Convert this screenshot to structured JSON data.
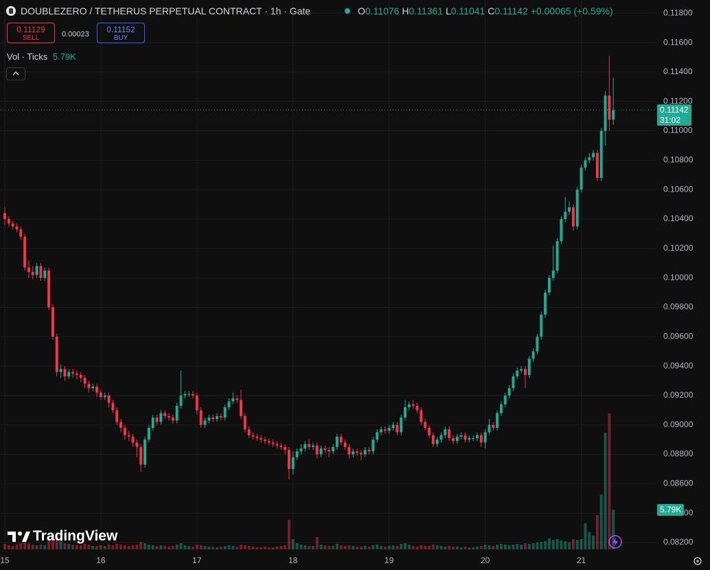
{
  "header": {
    "symbol_title": "DOUBLEZERO / TETHERUS PERPETUAL CONTRACT · 1h · Gate",
    "ohlc_labels": [
      "O",
      "H",
      "L",
      "C"
    ],
    "change": "+0.00065 (+0.59%)",
    "countdown": "31:02"
  },
  "trade": {
    "sell_price": 0.11129,
    "sell_label": "SELL",
    "spread": 0.00023,
    "buy_price": 0.11152,
    "buy_label": "BUY"
  },
  "indicator": {
    "name": "Vol · Ticks"
  },
  "branding": {
    "logo_text": "TradingView"
  },
  "chart_data": {
    "type": "candlestick",
    "up_color": "#22ab94",
    "down_color": "#f23645",
    "grid": true,
    "xlim": [
      -1.2,
      162.6
    ],
    "xticks": [
      {
        "value": 0,
        "label": "15"
      },
      {
        "value": 24,
        "label": "16"
      },
      {
        "value": 48,
        "label": "17"
      },
      {
        "value": 72,
        "label": "18"
      },
      {
        "value": 96,
        "label": "19"
      },
      {
        "value": 120,
        "label": "20"
      },
      {
        "value": 144,
        "label": "21"
      }
    ],
    "ylim": [
      0.0813,
      0.1189
    ],
    "yticks": [
      {
        "value": 0.118,
        "label": "0.11800"
      },
      {
        "value": 0.116,
        "label": "0.11600"
      },
      {
        "value": 0.114,
        "label": "0.11400"
      },
      {
        "value": 0.112,
        "label": "0.11200"
      },
      {
        "value": 0.11,
        "label": "0.11000"
      },
      {
        "value": 0.108,
        "label": "0.10800"
      },
      {
        "value": 0.106,
        "label": "0.10600"
      },
      {
        "value": 0.104,
        "label": "0.10400"
      },
      {
        "value": 0.102,
        "label": "0.10200"
      },
      {
        "value": 0.1,
        "label": "0.10000"
      },
      {
        "value": 0.098,
        "label": "0.09800"
      },
      {
        "value": 0.096,
        "label": "0.09600"
      },
      {
        "value": 0.094,
        "label": "0.09400"
      },
      {
        "value": 0.092,
        "label": "0.09200"
      },
      {
        "value": 0.09,
        "label": "0.09000"
      },
      {
        "value": 0.088,
        "label": "0.08800"
      },
      {
        "value": 0.086,
        "label": "0.08600"
      },
      {
        "value": 0.084,
        "label": "0.08400"
      },
      {
        "value": 0.082,
        "label": "0.08200"
      }
    ],
    "x": [
      0,
      1,
      2,
      3,
      4,
      5,
      6,
      7,
      8,
      9,
      10,
      11,
      12,
      13,
      14,
      15,
      16,
      17,
      18,
      19,
      20,
      21,
      22,
      23,
      24,
      25,
      26,
      27,
      28,
      29,
      30,
      31,
      32,
      33,
      34,
      35,
      36,
      37,
      38,
      39,
      40,
      41,
      42,
      43,
      44,
      45,
      46,
      47,
      48,
      49,
      50,
      51,
      52,
      53,
      54,
      55,
      56,
      57,
      58,
      59,
      60,
      61,
      62,
      63,
      64,
      65,
      66,
      67,
      68,
      69,
      70,
      71,
      72,
      73,
      74,
      75,
      76,
      77,
      78,
      79,
      80,
      81,
      82,
      83,
      84,
      85,
      86,
      87,
      88,
      89,
      90,
      91,
      92,
      93,
      94,
      95,
      96,
      97,
      98,
      99,
      100,
      101,
      102,
      103,
      104,
      105,
      106,
      107,
      108,
      109,
      110,
      111,
      112,
      113,
      114,
      115,
      116,
      117,
      118,
      119,
      120,
      121,
      122,
      123,
      124,
      125,
      126,
      127,
      128,
      129,
      130,
      131,
      132,
      133,
      134,
      135,
      136,
      137,
      138,
      139,
      140,
      141,
      142,
      143,
      144,
      145,
      146,
      147,
      148,
      149,
      150,
      151,
      152
    ],
    "open": [
      0.1044,
      0.104,
      0.1037,
      0.1035,
      0.1033,
      0.1028,
      0.1007,
      0.1004,
      0.1002,
      0.1008,
      0.1,
      0.1005,
      0.098,
      0.096,
      0.0936,
      0.0938,
      0.0933,
      0.0936,
      0.0935,
      0.0934,
      0.0932,
      0.0928,
      0.0925,
      0.0926,
      0.0922,
      0.0919,
      0.092,
      0.0915,
      0.091,
      0.0902,
      0.0898,
      0.0893,
      0.0892,
      0.0888,
      0.0885,
      0.0873,
      0.089,
      0.0898,
      0.0905,
      0.0902,
      0.0908,
      0.0906,
      0.0905,
      0.0903,
      0.0913,
      0.092,
      0.0921,
      0.0921,
      0.092,
      0.091,
      0.09,
      0.0903,
      0.0905,
      0.0904,
      0.0906,
      0.0905,
      0.0912,
      0.0916,
      0.0918,
      0.0917,
      0.0906,
      0.0897,
      0.0893,
      0.0892,
      0.0891,
      0.089,
      0.0889,
      0.0888,
      0.0887,
      0.0886,
      0.0885,
      0.0883,
      0.087,
      0.0878,
      0.0882,
      0.0884,
      0.0887,
      0.0885,
      0.0886,
      0.088,
      0.0884,
      0.0883,
      0.0882,
      0.0885,
      0.0892,
      0.0888,
      0.0885,
      0.088,
      0.0882,
      0.0881,
      0.088,
      0.0883,
      0.0882,
      0.089,
      0.0895,
      0.0897,
      0.0896,
      0.0898,
      0.09,
      0.0895,
      0.0905,
      0.0912,
      0.0914,
      0.0913,
      0.091,
      0.0902,
      0.0898,
      0.0893,
      0.0887,
      0.089,
      0.0893,
      0.0897,
      0.0891,
      0.0889,
      0.0892,
      0.0893,
      0.089,
      0.0891,
      0.0891,
      0.0893,
      0.0888,
      0.0895,
      0.09,
      0.0898,
      0.0908,
      0.0914,
      0.092,
      0.0925,
      0.0933,
      0.0937,
      0.0938,
      0.0934,
      0.0945,
      0.095,
      0.096,
      0.0975,
      0.099,
      0.1,
      0.1005,
      0.1025,
      0.104,
      0.1045,
      0.1048,
      0.1035,
      0.106,
      0.1075,
      0.108,
      0.1082,
      0.1085,
      0.1068,
      0.11,
      0.1124,
      0.11076
    ],
    "high": [
      0.1048,
      0.1042,
      0.1039,
      0.1037,
      0.1035,
      0.103,
      0.1012,
      0.1008,
      0.101,
      0.101,
      0.1007,
      0.1007,
      0.0982,
      0.0962,
      0.0941,
      0.094,
      0.0938,
      0.0938,
      0.0937,
      0.0936,
      0.0934,
      0.093,
      0.0928,
      0.0928,
      0.0924,
      0.0922,
      0.0922,
      0.0917,
      0.0912,
      0.0904,
      0.09,
      0.0896,
      0.0894,
      0.089,
      0.0887,
      0.0892,
      0.09,
      0.0907,
      0.0907,
      0.091,
      0.091,
      0.0908,
      0.0907,
      0.0915,
      0.0937,
      0.0923,
      0.0923,
      0.0923,
      0.0922,
      0.0912,
      0.0905,
      0.0907,
      0.0907,
      0.0908,
      0.0908,
      0.0914,
      0.0918,
      0.0922,
      0.092,
      0.0924,
      0.0908,
      0.0899,
      0.0895,
      0.0894,
      0.0893,
      0.0892,
      0.0891,
      0.089,
      0.0889,
      0.0888,
      0.0887,
      0.0885,
      0.0882,
      0.0884,
      0.0887,
      0.0889,
      0.089,
      0.0888,
      0.0888,
      0.0886,
      0.0886,
      0.0885,
      0.0887,
      0.0894,
      0.0894,
      0.089,
      0.0887,
      0.0884,
      0.0884,
      0.0883,
      0.0885,
      0.0885,
      0.0892,
      0.0897,
      0.0899,
      0.0899,
      0.09,
      0.0902,
      0.0902,
      0.0907,
      0.0917,
      0.0916,
      0.0917,
      0.0915,
      0.0912,
      0.0904,
      0.09,
      0.0895,
      0.0892,
      0.0895,
      0.0899,
      0.0899,
      0.0893,
      0.0894,
      0.0895,
      0.0895,
      0.0893,
      0.0893,
      0.0895,
      0.0895,
      0.0897,
      0.0904,
      0.0902,
      0.091,
      0.0916,
      0.0922,
      0.0927,
      0.0935,
      0.0939,
      0.094,
      0.094,
      0.0947,
      0.0952,
      0.0962,
      0.0977,
      0.0992,
      0.1002,
      0.1022,
      0.1027,
      0.1042,
      0.1055,
      0.1052,
      0.105,
      0.1062,
      0.1077,
      0.1082,
      0.1085,
      0.1087,
      0.1087,
      0.1102,
      0.1127,
      0.1151,
      0.11361
    ],
    "low": [
      0.1036,
      0.1035,
      0.1033,
      0.1031,
      0.1026,
      0.1005,
      0.1,
      0.0999,
      0.1,
      0.0998,
      0.0998,
      0.0978,
      0.0958,
      0.0933,
      0.0932,
      0.093,
      0.0931,
      0.0932,
      0.0931,
      0.0929,
      0.0925,
      0.0922,
      0.0923,
      0.0919,
      0.0917,
      0.0917,
      0.0912,
      0.0908,
      0.09,
      0.0895,
      0.089,
      0.0889,
      0.0885,
      0.0878,
      0.0868,
      0.0871,
      0.0888,
      0.0896,
      0.09,
      0.09,
      0.0904,
      0.0903,
      0.0901,
      0.0901,
      0.0911,
      0.0918,
      0.0919,
      0.0918,
      0.0907,
      0.0898,
      0.0898,
      0.0901,
      0.0902,
      0.0902,
      0.0903,
      0.0903,
      0.091,
      0.0914,
      0.0915,
      0.0904,
      0.0895,
      0.0891,
      0.089,
      0.0889,
      0.0888,
      0.0887,
      0.0886,
      0.0885,
      0.0884,
      0.0883,
      0.088,
      0.0863,
      0.0866,
      0.0876,
      0.088,
      0.0882,
      0.0883,
      0.0883,
      0.0877,
      0.0878,
      0.0881,
      0.0878,
      0.088,
      0.0883,
      0.0886,
      0.0883,
      0.0877,
      0.0878,
      0.0879,
      0.0876,
      0.0878,
      0.088,
      0.088,
      0.0888,
      0.0893,
      0.0894,
      0.0894,
      0.0896,
      0.0893,
      0.0893,
      0.0903,
      0.091,
      0.0911,
      0.0908,
      0.09,
      0.0896,
      0.0891,
      0.0885,
      0.0885,
      0.0888,
      0.0891,
      0.0889,
      0.0887,
      0.0887,
      0.089,
      0.0888,
      0.0888,
      0.0889,
      0.0889,
      0.0885,
      0.0884,
      0.0893,
      0.0896,
      0.0896,
      0.0906,
      0.0912,
      0.0918,
      0.0923,
      0.0931,
      0.0935,
      0.0925,
      0.0932,
      0.0943,
      0.0948,
      0.0958,
      0.0973,
      0.0988,
      0.0998,
      0.1003,
      0.1023,
      0.1038,
      0.1043,
      0.1032,
      0.1033,
      0.1058,
      0.1073,
      0.1078,
      0.108,
      0.1066,
      0.1066,
      0.109,
      0.11,
      0.11041
    ],
    "close": [
      0.104,
      0.1037,
      0.1035,
      0.1033,
      0.1028,
      0.1007,
      0.1004,
      0.1002,
      0.1008,
      0.1,
      0.1005,
      0.098,
      0.096,
      0.0936,
      0.0938,
      0.0933,
      0.0936,
      0.0935,
      0.0934,
      0.0932,
      0.0928,
      0.0925,
      0.0926,
      0.0922,
      0.0919,
      0.092,
      0.0915,
      0.091,
      0.0902,
      0.0898,
      0.0893,
      0.0892,
      0.0888,
      0.0885,
      0.0873,
      0.089,
      0.0898,
      0.0905,
      0.0902,
      0.0908,
      0.0906,
      0.0905,
      0.0903,
      0.0913,
      0.092,
      0.0921,
      0.0921,
      0.092,
      0.091,
      0.09,
      0.0903,
      0.0905,
      0.0904,
      0.0906,
      0.0905,
      0.0912,
      0.0916,
      0.0918,
      0.0917,
      0.0906,
      0.0897,
      0.0893,
      0.0892,
      0.0891,
      0.089,
      0.0889,
      0.0888,
      0.0887,
      0.0886,
      0.0885,
      0.0883,
      0.087,
      0.0878,
      0.0882,
      0.0884,
      0.0887,
      0.0885,
      0.0886,
      0.088,
      0.0884,
      0.0883,
      0.0882,
      0.0885,
      0.0892,
      0.0888,
      0.0885,
      0.088,
      0.0882,
      0.0881,
      0.088,
      0.0883,
      0.0882,
      0.089,
      0.0895,
      0.0897,
      0.0896,
      0.0898,
      0.09,
      0.0895,
      0.0905,
      0.0912,
      0.0914,
      0.0913,
      0.091,
      0.0902,
      0.0898,
      0.0893,
      0.0887,
      0.089,
      0.0893,
      0.0897,
      0.0891,
      0.0889,
      0.0892,
      0.0893,
      0.089,
      0.0891,
      0.0891,
      0.0893,
      0.0888,
      0.0895,
      0.09,
      0.0898,
      0.0908,
      0.0914,
      0.092,
      0.0925,
      0.0933,
      0.0937,
      0.0938,
      0.0934,
      0.0945,
      0.095,
      0.096,
      0.0975,
      0.099,
      0.1,
      0.1005,
      0.1025,
      0.104,
      0.1045,
      0.1048,
      0.1035,
      0.106,
      0.1075,
      0.108,
      0.1082,
      0.1085,
      0.1068,
      0.11,
      0.1124,
      0.11076,
      0.11142
    ],
    "volume": [
      800,
      600,
      500,
      700,
      900,
      1200,
      900,
      700,
      600,
      700,
      600,
      1500,
      2200,
      2000,
      1400,
      900,
      800,
      700,
      600,
      600,
      800,
      700,
      500,
      500,
      600,
      500,
      700,
      600,
      800,
      700,
      600,
      500,
      600,
      700,
      1100,
      900,
      700,
      600,
      500,
      600,
      500,
      400,
      500,
      700,
      900,
      600,
      500,
      400,
      700,
      600,
      500,
      400,
      400,
      300,
      400,
      500,
      600,
      500,
      400,
      700,
      600,
      500,
      400,
      300,
      300,
      400,
      300,
      300,
      400,
      500,
      600,
      4300,
      1500,
      900,
      700,
      600,
      500,
      500,
      1800,
      700,
      600,
      500,
      500,
      800,
      600,
      500,
      600,
      500,
      400,
      400,
      500,
      400,
      600,
      700,
      500,
      400,
      500,
      600,
      500,
      800,
      900,
      700,
      500,
      400,
      600,
      500,
      500,
      700,
      600,
      500,
      400,
      500,
      400,
      400,
      300,
      400,
      300,
      300,
      400,
      500,
      700,
      600,
      500,
      700,
      800,
      700,
      600,
      700,
      800,
      700,
      900,
      800,
      900,
      1000,
      1100,
      1200,
      1600,
      1400,
      1500,
      1300,
      1200,
      1000,
      1500,
      1400,
      1500,
      3800,
      2500,
      2000,
      5000,
      8000,
      17000,
      19800,
      5790
    ],
    "volume_label": "5.79K"
  }
}
